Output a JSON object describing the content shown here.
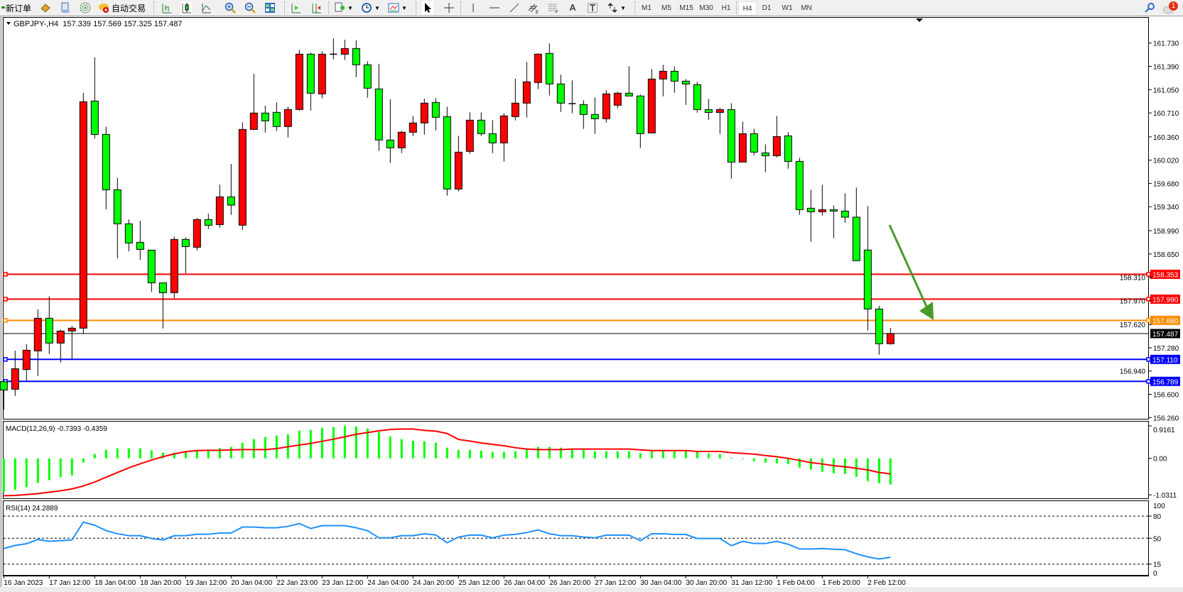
{
  "toolbar": {
    "new_order": "新订单",
    "auto_trading": "自动交易",
    "periods": [
      "M1",
      "M5",
      "M15",
      "M30",
      "H1",
      "H4",
      "D1",
      "W1",
      "MN"
    ],
    "active_period": "H4",
    "notification_count": "1",
    "icons": [
      "new-order-icon",
      "market-watch-icon",
      "navigator-icon",
      "signals-icon",
      "auto-trading-icon",
      "bar-chart-icon",
      "candlestick-icon",
      "line-chart-icon",
      "zoom-in-icon",
      "zoom-out-icon",
      "tile-windows-icon",
      "auto-scroll-icon",
      "chart-shift-icon",
      "new-chart-icon",
      "periods-clock-icon",
      "templates-icon",
      "cursor-icon",
      "crosshair-icon",
      "vertical-line-icon",
      "horizontal-line-icon",
      "trendline-icon",
      "equidistant-channel-icon",
      "fibonacci-icon",
      "text-icon",
      "text-label-icon",
      "arrows-icon",
      "search-icon",
      "notification-icon"
    ]
  },
  "chart": {
    "header": "GBPJPY-,H4  157.339 157.569 157.325 157.487",
    "symbol": "GBPJPY-",
    "timeframe": "H4",
    "ohlc": {
      "open": 157.339,
      "high": 157.569,
      "low": 157.325,
      "close": 157.487
    },
    "colors": {
      "bull": "#ff0000",
      "bear": "#00ff00",
      "background": "#ffffff",
      "macd_hist": "#00ff00",
      "macd_signal": "#ff0000",
      "rsi": "#1e90ff",
      "arrow": "#4a9a2a"
    }
  },
  "chart_data": [
    {
      "type": "candlestick",
      "title": "GBPJPY-,H4",
      "ylim": [
        156.26,
        161.73
      ],
      "y_ticks": [
        "161.730",
        "161.390",
        "161.050",
        "160.710",
        "160.360",
        "160.020",
        "159.680",
        "159.340",
        "158.990",
        "158.650",
        "158.310",
        "157.970",
        "157.620",
        "157.280",
        "156.940",
        "156.600",
        "156.260"
      ],
      "x_labels": [
        "16 Jan 2023",
        "17 Jan 12:00",
        "18 Jan 04:00",
        "18 Jan 20:00",
        "19 Jan 12:00",
        "20 Jan 04:00",
        "22 Jan 23:00",
        "23 Jan 12:00",
        "24 Jan 04:00",
        "24 Jan 20:00",
        "25 Jan 12:00",
        "26 Jan 04:00",
        "26 Jan 20:00",
        "27 Jan 12:00",
        "30 Jan 04:00",
        "30 Jan 20:00",
        "31 Jan 12:00",
        "1 Feb 04:00",
        "1 Feb 20:00",
        "2 Feb 12:00"
      ],
      "x_label_every_n_bars": 4,
      "ohlc": [
        [
          156.784,
          156.8,
          156.373,
          156.663
        ],
        [
          156.674,
          157.237,
          156.577,
          156.974
        ],
        [
          156.961,
          157.331,
          156.795,
          157.244
        ],
        [
          157.234,
          157.839,
          156.864,
          157.711
        ],
        [
          157.711,
          158.032,
          157.189,
          157.348
        ],
        [
          157.348,
          157.545,
          157.065,
          157.524
        ],
        [
          157.524,
          157.6,
          157.116,
          157.566
        ],
        [
          157.566,
          161.001,
          157.479,
          160.873
        ],
        [
          160.883,
          161.519,
          160.337,
          160.396
        ],
        [
          160.396,
          160.51,
          159.3,
          159.587
        ],
        [
          159.587,
          159.757,
          158.585,
          159.09
        ],
        [
          159.09,
          159.155,
          158.689,
          158.81
        ],
        [
          158.82,
          159.135,
          158.564,
          158.716
        ],
        [
          158.706,
          158.706,
          158.098,
          158.229
        ],
        [
          158.229,
          158.229,
          157.562,
          158.084
        ],
        [
          158.084,
          158.903,
          158.004,
          158.862
        ],
        [
          158.862,
          158.893,
          158.367,
          158.758
        ],
        [
          158.748,
          159.173,
          158.703,
          159.152
        ],
        [
          159.152,
          159.238,
          159.014,
          159.069
        ],
        [
          159.079,
          159.663,
          159.034,
          159.484
        ],
        [
          159.484,
          159.965,
          159.22,
          159.363
        ],
        [
          159.07,
          160.573,
          159.0,
          160.469
        ],
        [
          160.469,
          161.281,
          160.459,
          160.708
        ],
        [
          160.708,
          160.815,
          160.424,
          160.594
        ],
        [
          160.718,
          160.863,
          160.445,
          160.511
        ],
        [
          160.511,
          160.801,
          160.352,
          160.76
        ],
        [
          160.76,
          161.631,
          160.746,
          161.568
        ],
        [
          161.568,
          161.589,
          160.746,
          160.998
        ],
        [
          160.988,
          161.61,
          160.922,
          161.568
        ],
        [
          161.568,
          161.8,
          161.492,
          161.568
        ],
        [
          161.568,
          161.779,
          161.482,
          161.651
        ],
        [
          161.651,
          161.769,
          161.233,
          161.413
        ],
        [
          161.413,
          161.465,
          160.932,
          161.071
        ],
        [
          161.06,
          161.427,
          160.155,
          160.314
        ],
        [
          160.314,
          160.908,
          159.979,
          160.2
        ],
        [
          160.2,
          160.449,
          160.124,
          160.428
        ],
        [
          160.428,
          160.666,
          160.373,
          160.563
        ],
        [
          160.563,
          160.919,
          160.393,
          160.853
        ],
        [
          160.863,
          160.925,
          160.455,
          160.646
        ],
        [
          160.656,
          160.801,
          159.502,
          159.598
        ],
        [
          159.598,
          160.376,
          159.564,
          160.137
        ],
        [
          160.148,
          160.718,
          160.113,
          160.604
        ],
        [
          160.604,
          160.718,
          160.373,
          160.407
        ],
        [
          160.407,
          160.604,
          160.124,
          160.272
        ],
        [
          160.272,
          160.708,
          159.999,
          160.666
        ],
        [
          160.656,
          161.209,
          160.601,
          160.853
        ],
        [
          160.853,
          161.454,
          160.642,
          161.164
        ],
        [
          161.154,
          161.579,
          161.057,
          161.568
        ],
        [
          161.579,
          161.724,
          160.963,
          161.133
        ],
        [
          161.133,
          161.268,
          160.725,
          160.853
        ],
        [
          160.846,
          161.185,
          160.704,
          160.846
        ],
        [
          160.832,
          160.894,
          160.476,
          160.687
        ],
        [
          160.687,
          160.936,
          160.404,
          160.625
        ],
        [
          160.625,
          161.04,
          160.569,
          160.988
        ],
        [
          160.822,
          161.019,
          160.777,
          160.998
        ],
        [
          160.998,
          161.392,
          160.957,
          160.957
        ],
        [
          160.957,
          160.977,
          160.196,
          160.407
        ],
        [
          160.417,
          161.35,
          160.417,
          161.205
        ],
        [
          161.205,
          161.412,
          160.952,
          161.319
        ],
        [
          161.319,
          161.391,
          161.004,
          161.174
        ],
        [
          161.174,
          161.205,
          160.828,
          161.132
        ],
        [
          161.122,
          161.163,
          160.714,
          160.759
        ],
        [
          160.759,
          160.914,
          160.61,
          160.717
        ],
        [
          160.717,
          160.78,
          160.403,
          160.759
        ],
        [
          160.759,
          160.852,
          159.75,
          159.992
        ],
        [
          159.992,
          160.583,
          159.992,
          160.406
        ],
        [
          160.406,
          160.479,
          160.092,
          160.137
        ],
        [
          160.126,
          160.251,
          159.843,
          160.085
        ],
        [
          160.085,
          160.666,
          160.061,
          160.365
        ],
        [
          160.375,
          160.427,
          159.895,
          160.002
        ],
        [
          160.002,
          160.054,
          159.221,
          159.297
        ],
        [
          159.318,
          159.587,
          158.828,
          159.266
        ],
        [
          159.266,
          159.66,
          159.211,
          159.297
        ],
        [
          159.297,
          159.359,
          158.88,
          159.276
        ],
        [
          159.276,
          159.536,
          159.107,
          159.187
        ],
        [
          159.187,
          159.618,
          158.551,
          158.551
        ],
        [
          158.707,
          159.349,
          157.532,
          157.846
        ],
        [
          157.846,
          157.891,
          157.179,
          157.338
        ],
        [
          157.339,
          157.569,
          157.325,
          157.487
        ]
      ],
      "horizontal_lines": [
        {
          "price": "158.353",
          "color": "#ff0000"
        },
        {
          "price": "157.990",
          "color": "#ff0000"
        },
        {
          "price": "157.680",
          "color": "#ff8c00"
        },
        {
          "price": "157.110",
          "color": "#0000ff"
        },
        {
          "price": "156.789",
          "color": "#0000ff"
        }
      ],
      "bid_line": {
        "price": "157.487",
        "color": "#000000"
      },
      "annotation_arrow": {
        "from_bar": 78,
        "from_price": 158.99,
        "to_bar": 82,
        "to_price": 157.63,
        "direction": "down"
      }
    },
    {
      "type": "bar+line",
      "title": "MACD(12,26,9) -0.7393 -0.4359",
      "ylim": [
        -1.0311,
        0.9161
      ],
      "y_ticks": [
        "0.9161",
        "0.00",
        "-1.0311"
      ],
      "histogram": [
        -0.955,
        -0.888,
        -0.815,
        -0.695,
        -0.615,
        -0.534,
        -0.481,
        -0.12,
        0.12,
        0.24,
        0.281,
        0.281,
        0.281,
        0.227,
        0.16,
        0.16,
        0.214,
        0.214,
        0.227,
        0.294,
        0.321,
        0.441,
        0.541,
        0.601,
        0.641,
        0.681,
        0.782,
        0.802,
        0.862,
        0.882,
        0.922,
        0.902,
        0.842,
        0.742,
        0.621,
        0.541,
        0.501,
        0.481,
        0.441,
        0.301,
        0.24,
        0.24,
        0.22,
        0.18,
        0.18,
        0.2,
        0.24,
        0.321,
        0.321,
        0.301,
        0.281,
        0.24,
        0.2,
        0.2,
        0.2,
        0.2,
        0.14,
        0.2,
        0.2,
        0.2,
        0.2,
        0.2,
        0.14,
        0.12,
        0.02,
        -0.007,
        -0.08,
        -0.12,
        -0.14,
        -0.16,
        -0.261,
        -0.321,
        -0.381,
        -0.421,
        -0.441,
        -0.521,
        -0.641,
        -0.7,
        -0.7393
      ],
      "signal": [
        -1.055,
        -1.049,
        -1.022,
        -0.995,
        -0.955,
        -0.915,
        -0.862,
        -0.782,
        -0.668,
        -0.534,
        -0.401,
        -0.267,
        -0.154,
        -0.047,
        0.047,
        0.127,
        0.187,
        0.22,
        0.227,
        0.227,
        0.24,
        0.247,
        0.247,
        0.247,
        0.274,
        0.327,
        0.374,
        0.421,
        0.481,
        0.541,
        0.608,
        0.681,
        0.728,
        0.775,
        0.815,
        0.828,
        0.828,
        0.788,
        0.768,
        0.701,
        0.534,
        0.488,
        0.434,
        0.394,
        0.354,
        0.301,
        0.261,
        0.247,
        0.247,
        0.247,
        0.261,
        0.261,
        0.261,
        0.261,
        0.261,
        0.261,
        0.24,
        0.22,
        0.22,
        0.22,
        0.22,
        0.194,
        0.194,
        0.194,
        0.16,
        0.14,
        0.12,
        0.08,
        0.047,
        0.0,
        -0.06,
        -0.12,
        -0.16,
        -0.207,
        -0.24,
        -0.281,
        -0.327,
        -0.4,
        -0.4359
      ]
    },
    {
      "type": "line",
      "title": "RSI(14) 24.2889",
      "ylim": [
        0,
        100
      ],
      "y_ticks": [
        "100",
        "80",
        "50",
        "15",
        "0"
      ],
      "levels": [
        80,
        50,
        15
      ],
      "values": [
        36.1,
        40.3,
        42.6,
        48.4,
        45.8,
        46.8,
        47.7,
        71.9,
        67.7,
        60.3,
        56.1,
        53.5,
        53.5,
        49.7,
        47.7,
        53.5,
        53.5,
        55.5,
        55.5,
        57.1,
        57.1,
        65.2,
        65.2,
        64.2,
        64.2,
        66.1,
        70.0,
        63.2,
        67.1,
        67.1,
        67.1,
        64.2,
        60.3,
        50.6,
        50.6,
        53.5,
        53.5,
        56.1,
        54.5,
        43.9,
        51.6,
        54.2,
        54.2,
        50.6,
        54.2,
        55.2,
        57.7,
        61.3,
        56.1,
        53.5,
        53.5,
        51.6,
        50.6,
        54.2,
        54.2,
        54.2,
        46.8,
        56.1,
        56.1,
        55.2,
        55.2,
        49.7,
        49.7,
        49.7,
        40.0,
        45.8,
        42.9,
        42.9,
        45.8,
        41.9,
        35.5,
        35.5,
        36.1,
        35.2,
        34.5,
        29.0,
        24.8,
        21.9,
        24.2889
      ]
    }
  ]
}
